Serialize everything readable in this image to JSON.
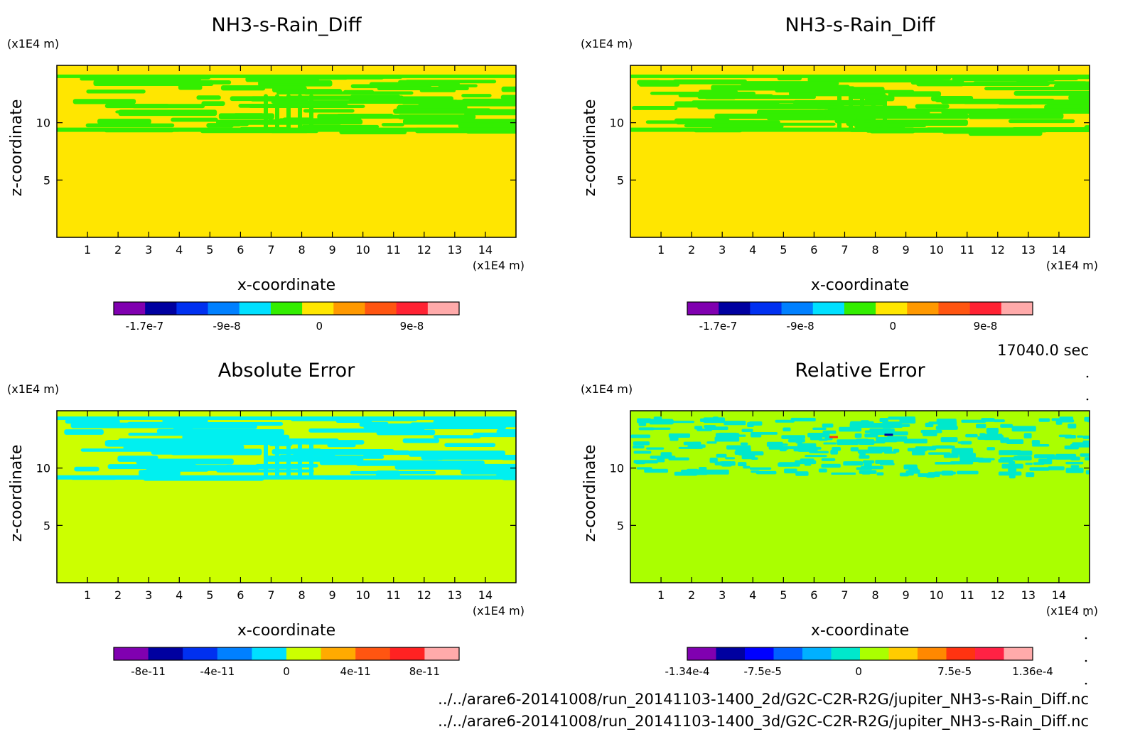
{
  "time_label": "17040.0 sec",
  "file_lines": [
    "../../arare6-20141008/run_20141103-1400_2d/G2C-C2R-R2G/jupiter_NH3-s-Rain_Diff.nc",
    "../../arare6-20141008/run_20141103-1400_3d/G2C-C2R-R2G/jupiter_NH3-s-Rain_Diff.nc"
  ],
  "chart_data": [
    {
      "type": "heatmap",
      "title": "NH3-s-Rain_Diff",
      "xlabel": "x-coordinate",
      "ylabel": "z-coordinate",
      "x_unit": "(x1E4 m)",
      "y_unit": "(x1E4 m)",
      "xlim": [
        0,
        15
      ],
      "ylim": [
        0,
        15
      ],
      "x_ticks": [
        1,
        2,
        3,
        4,
        5,
        6,
        7,
        8,
        9,
        10,
        11,
        12,
        13,
        14
      ],
      "y_ticks": [
        5,
        10
      ],
      "background_color": "#ffe600",
      "pattern_color": "#33ee00",
      "pattern_zmin": 9.2,
      "pattern_zmax": 14.2,
      "pattern_kind": "bands",
      "colorbar": {
        "colors": [
          "#8000b0",
          "#0000a0",
          "#0030f0",
          "#0080ff",
          "#00e0ff",
          "#33ee00",
          "#ffe600",
          "#ff9900",
          "#ff5511",
          "#ff2233",
          "#ffaaaa"
        ],
        "tick_labels": [
          "-1.7e-7",
          "-9e-8",
          "0",
          "9e-8"
        ],
        "tick_values": [
          -1.7e-07,
          -9e-08,
          0,
          9e-08
        ],
        "range": [
          -2e-07,
          1.36e-07
        ]
      }
    },
    {
      "type": "heatmap",
      "title": "NH3-s-Rain_Diff",
      "xlabel": "x-coordinate",
      "ylabel": "z-coordinate",
      "x_unit": "(x1E4 m)",
      "y_unit": "(x1E4 m)",
      "xlim": [
        0,
        15
      ],
      "ylim": [
        0,
        15
      ],
      "x_ticks": [
        1,
        2,
        3,
        4,
        5,
        6,
        7,
        8,
        9,
        10,
        11,
        12,
        13,
        14
      ],
      "y_ticks": [
        5,
        10
      ],
      "background_color": "#ffe600",
      "pattern_color": "#33ee00",
      "pattern_zmin": 9.2,
      "pattern_zmax": 14.2,
      "pattern_kind": "bands",
      "colorbar": {
        "colors": [
          "#8000b0",
          "#0000a0",
          "#0030f0",
          "#0080ff",
          "#00e0ff",
          "#33ee00",
          "#ffe600",
          "#ff9900",
          "#ff5511",
          "#ff2233",
          "#ffaaaa"
        ],
        "tick_labels": [
          "-1.7e-7",
          "-9e-8",
          "0",
          "9e-8"
        ],
        "tick_values": [
          -1.7e-07,
          -9e-08,
          0,
          9e-08
        ],
        "range": [
          -2e-07,
          1.36e-07
        ]
      }
    },
    {
      "type": "heatmap",
      "title": "Absolute Error",
      "xlabel": "x-coordinate",
      "ylabel": "z-coordinate",
      "x_unit": "(x1E4 m)",
      "y_unit": "(x1E4 m)",
      "xlim": [
        0,
        15
      ],
      "ylim": [
        0,
        15
      ],
      "x_ticks": [
        1,
        2,
        3,
        4,
        5,
        6,
        7,
        8,
        9,
        10,
        11,
        12,
        13,
        14
      ],
      "y_ticks": [
        5,
        10
      ],
      "background_color": "#ccff00",
      "pattern_color": "#00f0f0",
      "pattern_zmin": 9.0,
      "pattern_zmax": 14.5,
      "pattern_kind": "bands",
      "colorbar": {
        "colors": [
          "#8000b0",
          "#0000a0",
          "#0030f0",
          "#0080ff",
          "#00e0ff",
          "#ccff00",
          "#ffaa00",
          "#ff5511",
          "#ff2222",
          "#ffaaaa"
        ],
        "tick_labels": [
          "-8e-11",
          "-4e-11",
          "0",
          "4e-11",
          "8e-11"
        ],
        "tick_values": [
          -8e-11,
          -4e-11,
          0,
          4e-11,
          8e-11
        ],
        "range": [
          -1e-10,
          1e-10
        ]
      }
    },
    {
      "type": "heatmap",
      "title": "Relative Error",
      "xlabel": "x-coordinate",
      "ylabel": "z-coordinate",
      "x_unit": "(x1E4 m)",
      "y_unit": "(x1E4 m)",
      "xlim": [
        0,
        15
      ],
      "ylim": [
        0,
        15
      ],
      "x_ticks": [
        1,
        2,
        3,
        4,
        5,
        6,
        7,
        8,
        9,
        10,
        11,
        12,
        13,
        14
      ],
      "y_ticks": [
        5,
        10
      ],
      "background_color": "#aaff00",
      "pattern_color": "#00e8cc",
      "pattern_zmin": 9.5,
      "pattern_zmax": 14.5,
      "pattern_kind": "speckle",
      "colorbar": {
        "colors": [
          "#8000b0",
          "#0000a0",
          "#0000ff",
          "#0060ff",
          "#00b0ff",
          "#00e8cc",
          "#aaff00",
          "#ffcc00",
          "#ff8800",
          "#ff3311",
          "#ff2244",
          "#ffaaaa"
        ],
        "tick_labels": [
          "-1.34e-4",
          "-7.5e-5",
          "0",
          "7.5e-5",
          "1.36e-4"
        ],
        "tick_values": [
          -0.000134,
          -7.5e-05,
          0,
          7.5e-05,
          0.000136
        ],
        "range": [
          -0.000134,
          0.000136
        ]
      }
    }
  ]
}
